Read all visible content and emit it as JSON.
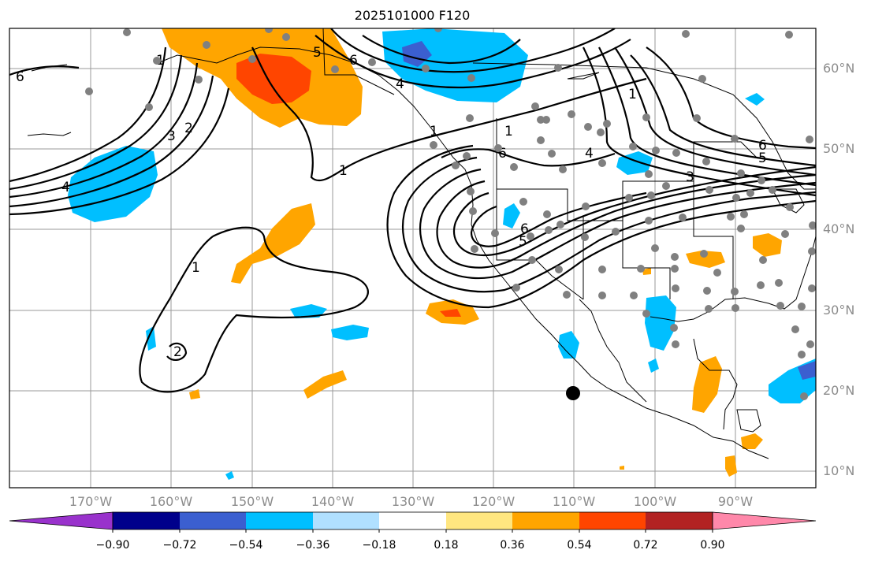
{
  "title": "2025101000 F120",
  "map": {
    "lat_labels": [
      "60°N",
      "50°N",
      "40°N",
      "30°N",
      "20°N",
      "10°N"
    ],
    "lon_labels": [
      "170°W",
      "160°W",
      "150°W",
      "140°W",
      "130°W",
      "120°W",
      "110°W",
      "100°W",
      "90°W"
    ],
    "contour_labels": [
      "6",
      "6",
      "5",
      "4",
      "3",
      "2",
      "1",
      "1",
      "4",
      "6",
      "5",
      "4",
      "3",
      "1",
      "1",
      "6",
      "6",
      "5",
      "1",
      "2",
      "1"
    ],
    "station_dot_color": "#808080",
    "marker_color": "#000000"
  },
  "colorbar": {
    "tick_labels": [
      "−0.90",
      "−0.72",
      "−0.54",
      "−0.36",
      "−0.18",
      "0.18",
      "0.36",
      "0.54",
      "0.72",
      "0.90"
    ],
    "colors": [
      "#9932cc",
      "#00008b",
      "#3b5fd0",
      "#00bfff",
      "#b0e0ff",
      "#ffffff",
      "#ffe680",
      "#ffa500",
      "#ff4500",
      "#b22222",
      "#ff88aa"
    ]
  }
}
